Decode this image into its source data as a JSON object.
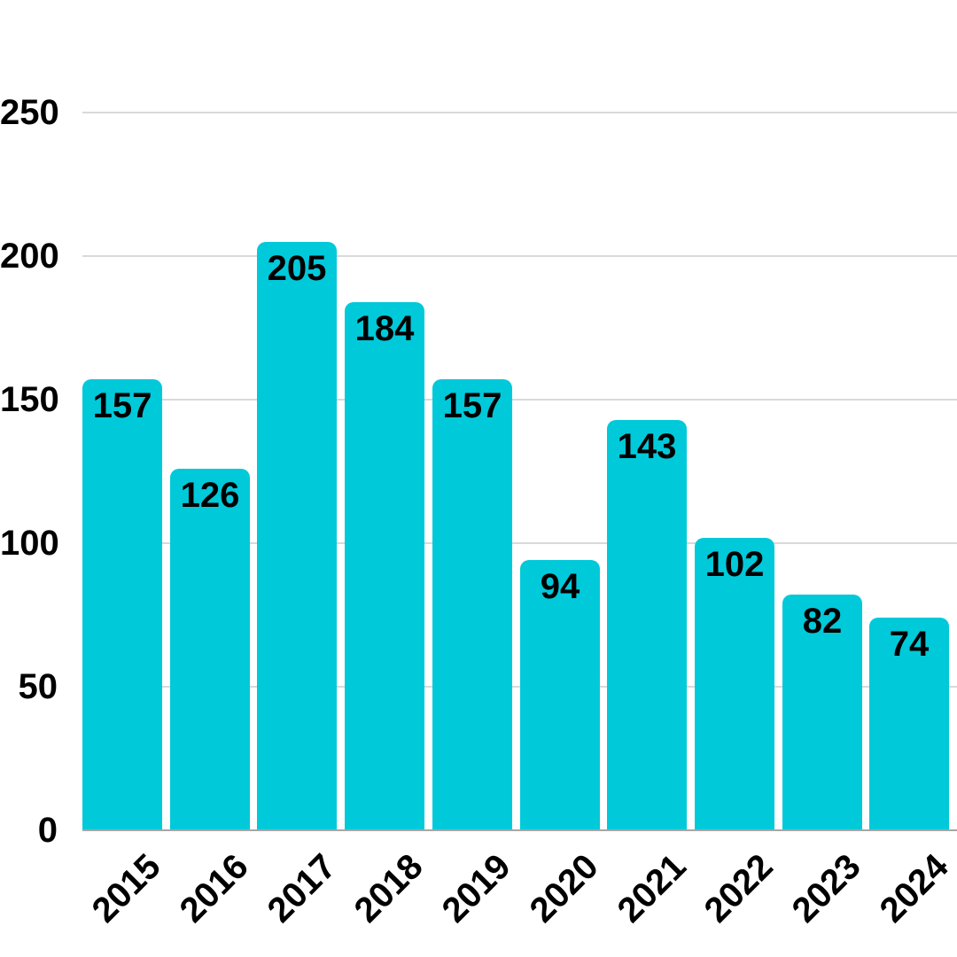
{
  "chart_data": {
    "type": "bar",
    "title": "",
    "xlabel": "",
    "ylabel": "",
    "categories": [
      "2015",
      "2016",
      "2017",
      "2018",
      "2019",
      "2020",
      "2021",
      "2022",
      "2023",
      "2024"
    ],
    "values": [
      157,
      126,
      205,
      184,
      157,
      94,
      143,
      102,
      82,
      74
    ],
    "ylim": [
      0,
      250
    ],
    "yticks": [
      0,
      50,
      100,
      150,
      200,
      250
    ],
    "grid": true,
    "legend": "none",
    "bar_color": "#00C9DA",
    "value_label_color": "#000000",
    "tick_label_color": "#000000",
    "gridline_color": "#d9d9d9",
    "baseline_color": "#a6a6a6",
    "background_color": "#ffffff"
  }
}
